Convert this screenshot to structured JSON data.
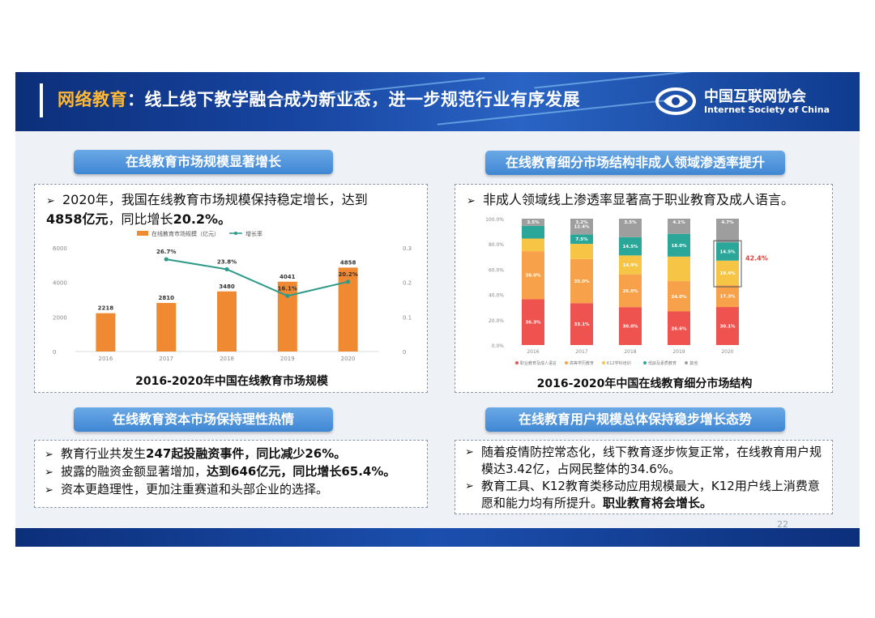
{
  "header": {
    "title_highlight": "网络教育",
    "title_rest": "：线上线下教学融合成为新业态，进一步规范行业有序发展",
    "logo_cn": "中国互联网协会",
    "logo_en": "Internet Society of China"
  },
  "sections": {
    "market_scale": {
      "heading": "在线教育市场规模显著增长",
      "note_line1": "2020年，我国在线教育市场规模保持稳定增长，达到",
      "note_line2_bold": "4858亿元",
      "note_line2_rest": "，同比增长",
      "note_line2_bold2": "20.2%。",
      "caption": "2016-2020年中国在线教育市场规模"
    },
    "segment_structure": {
      "heading": "在线教育细分市场结构非成人领域渗透率提升",
      "note": "非成人领域线上渗透率显著高于职业教育及成人语言。",
      "caption": "2016-2020年中国在线教育细分市场结构"
    },
    "capital": {
      "heading": "在线教育资本市场保持理性热情",
      "bullet1_a": "教育行业共发生",
      "bullet1_b": "247起投融资事件，同比减少26%。",
      "bullet2_a": "披露的融资金额显著增加，",
      "bullet2_b": "达到646亿元，同比增长65.4%。",
      "bullet3": "资本更趋理性，更加注重赛道和头部企业的选择。"
    },
    "users": {
      "heading": "在线教育用户规模总体保持稳步增长态势",
      "bullet1": "随着疫情防控常态化，线下教育逐步恢复正常，在线教育用户规模达3.42亿，占网民整体的34.6%。",
      "bullet2_a": "教育工具、K12教育类移动应用规模最大，K12用户线上消费意愿和能力均有所提升。",
      "bullet2_b": "职业教育将会增长。"
    }
  },
  "page_number": "22",
  "colors": {
    "bar": "#ef8a33",
    "line": "#2e9a8a",
    "pill": "#4a8fd8"
  },
  "chart_data": [
    {
      "type": "bar",
      "title": "",
      "categories": [
        "2016",
        "2017",
        "2018",
        "2019",
        "2020"
      ],
      "series": [
        {
          "name": "在线教育市场规模（亿元）",
          "values": [
            2218,
            2810,
            3480,
            4041,
            4858
          ],
          "labels": [
            "2218",
            "2810",
            "3480",
            "4041",
            "4858"
          ]
        },
        {
          "name": "增长率",
          "type": "line",
          "axis": "right",
          "values": [
            null,
            0.267,
            0.238,
            0.161,
            0.202
          ],
          "labels": [
            "",
            "26.7%",
            "23.8%",
            "16.1%",
            "20.2%"
          ]
        }
      ],
      "ylim": [
        0,
        6000
      ],
      "yticks": [
        "0",
        "2000",
        "4000",
        "6000"
      ],
      "y2lim": [
        0,
        0.3
      ],
      "y2ticks": [
        "0",
        "0.1",
        "0.2",
        "0.3"
      ],
      "legend_position": "top"
    },
    {
      "type": "bar",
      "stacked": true,
      "categories": [
        "2016",
        "2017",
        "2018",
        "2019",
        "2020"
      ],
      "series": [
        {
          "name": "职业教育及成人语言",
          "color": "#ef5350",
          "values": [
            0.363,
            0.331,
            0.3,
            0.266,
            0.301
          ],
          "labels": [
            "36.3%",
            "33.1%",
            "30.0%",
            "26.6%",
            "30.1%"
          ]
        },
        {
          "name": "高等学历教育",
          "color": "#f7a24a",
          "values": [
            0.38,
            0.35,
            0.26,
            0.24,
            0.173
          ],
          "labels": [
            "38.0%",
            "35.0%",
            "26.0%",
            "24.0%",
            "17.3%"
          ]
        },
        {
          "name": "K12学科培训",
          "color": "#f7c545",
          "values": [
            0.1,
            0.12,
            0.149,
            0.194,
            0.194
          ],
          "labels": [
            "",
            "",
            "14.9%",
            "",
            "19.4%"
          ]
        },
        {
          "name": "低龄及素质教育",
          "color": "#2ba79a",
          "values": [
            0.1,
            0.075,
            0.145,
            0.18,
            0.145
          ],
          "labels": [
            "",
            "7.5%",
            "14.5%",
            "18.0%",
            "14.5%"
          ]
        },
        {
          "name": "其他",
          "color": "#9e9e9e",
          "values": [
            0.057,
            0.124,
            0.146,
            0.12,
            0.187
          ],
          "labels": [
            "",
            "12.4%",
            "",
            "",
            ""
          ]
        }
      ],
      "top_labels": [
        "3.5%",
        "3.2%",
        "3.5%",
        "4.1%",
        "4.7%"
      ],
      "annotation": "42.4%",
      "ylim": [
        0,
        1
      ],
      "yticks": [
        "0.0%",
        "20.0%",
        "40.0%",
        "60.0%",
        "80.0%",
        "100.0%"
      ],
      "legend_position": "bottom"
    }
  ]
}
